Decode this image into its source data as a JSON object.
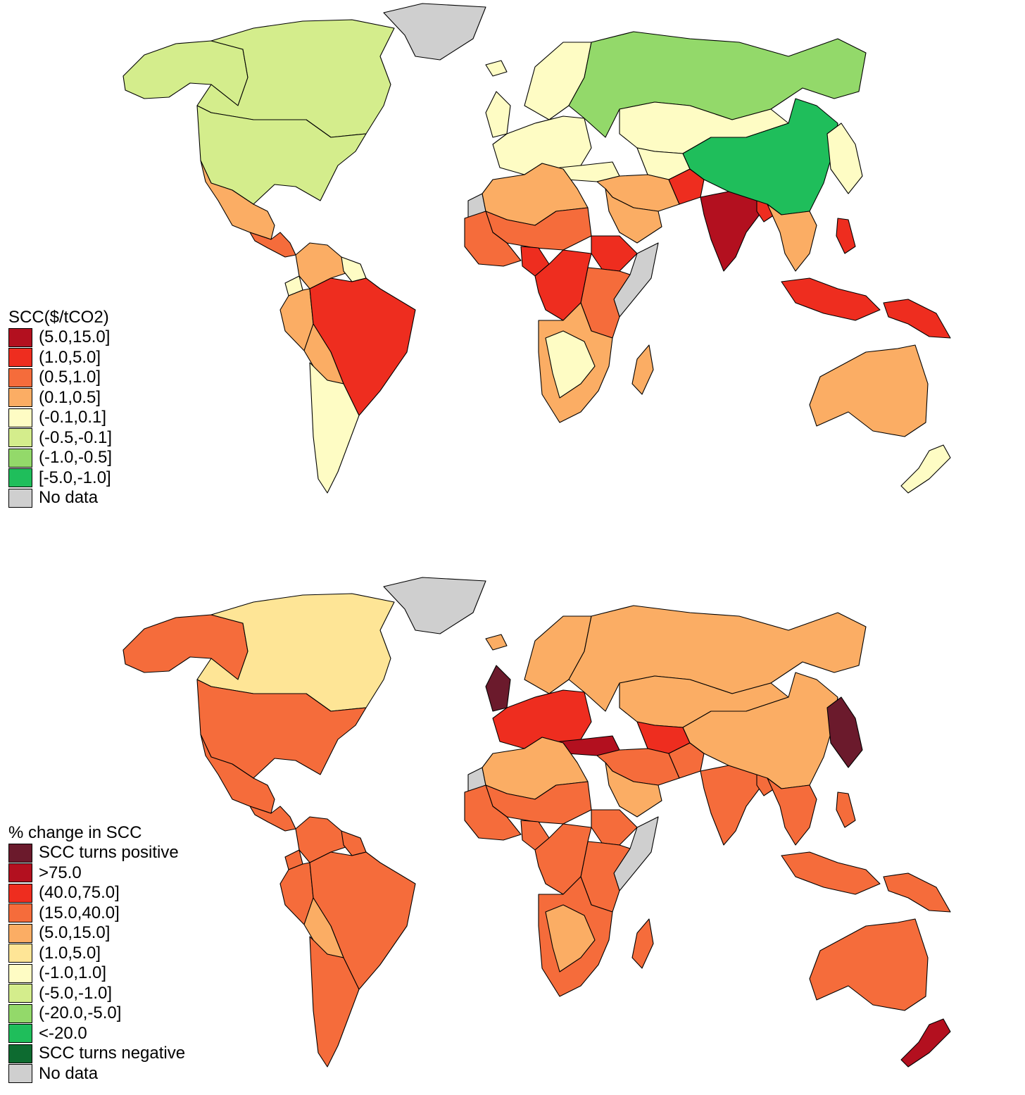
{
  "maps": [
    {
      "id": "scc-level",
      "legend": {
        "title": "SCC($/tCO2)",
        "classes": [
          {
            "label": "(5.0,15.0]",
            "color": "#b3101f"
          },
          {
            "label": "(1.0,5.0]",
            "color": "#ee2d1f"
          },
          {
            "label": "(0.5,1.0]",
            "color": "#f56c3b"
          },
          {
            "label": "(0.1,0.5]",
            "color": "#fbad64"
          },
          {
            "label": "(-0.1,0.1]",
            "color": "#fefcc4"
          },
          {
            "label": "(-0.5,-0.1]",
            "color": "#d4ed8c"
          },
          {
            "label": "(-1.0,-0.5]",
            "color": "#93d96a"
          },
          {
            "label": "[-5.0,-1.0]",
            "color": "#1fbe5b"
          },
          {
            "label": "No data",
            "color": "#cfcfcf"
          }
        ]
      },
      "regions": {
        "canada": "(-0.5,-0.1]",
        "alaska": "(-0.5,-0.1]",
        "usa": "(-0.5,-0.1]",
        "greenland": "No data",
        "mexico": "(0.1,0.5]",
        "central_america": "(0.5,1.0]",
        "colombia_venezuela": "(0.1,0.5]",
        "guianas": "(-0.1,0.1]",
        "peru": "(0.1,0.5]",
        "ecuador": "(-0.1,0.1]",
        "brazil": "(1.0,5.0]",
        "bolivia": "(0.1,0.5]",
        "southern_cone": "(-0.1,0.1]",
        "uk_ireland": "(-0.1,0.1]",
        "scandinavia": "(-0.1,0.1]",
        "iceland": "(-0.1,0.1]",
        "europe": "(-0.1,0.1]",
        "turkey": "(-0.1,0.1]",
        "russia": "(-1.0,-0.5]",
        "kazakhstan_mongolia": "(-0.1,0.1]",
        "central_asia": "(-0.1,0.1]",
        "china": "[-5.0,-1.0]",
        "korea_japan": "(-0.1,0.1]",
        "india": "(5.0,15.0]",
        "south_asia_west": "(1.0,5.0]",
        "bangladesh": "(1.0,5.0]",
        "iran_middle_east": "(0.1,0.5]",
        "arabia": "(0.1,0.5]",
        "southeast_asia": "(0.1,0.5]",
        "indonesia": "(1.0,5.0]",
        "philippines": "(1.0,5.0]",
        "new_guinea": "(1.0,5.0]",
        "australia": "(0.1,0.5]",
        "new_zealand": "(-0.1,0.1]",
        "north_africa": "(0.1,0.5]",
        "sahel": "(0.5,1.0]",
        "west_africa": "(0.5,1.0]",
        "nigeria": "(1.0,5.0]",
        "east_africa": "(0.5,1.0]",
        "ethiopia": "(1.0,5.0]",
        "somalia": "No data",
        "central_africa": "(1.0,5.0]",
        "southern_africa": "(0.1,0.5]",
        "namibia_botswana": "(-0.1,0.1]",
        "madagascar": "(0.1,0.5]",
        "western_sahara": "No data"
      }
    },
    {
      "id": "scc-change",
      "legend": {
        "title": "% change in SCC",
        "classes": [
          {
            "label": "SCC turns positive",
            "color": "#6b1a2c"
          },
          {
            "label": ">75.0",
            "color": "#b3101f"
          },
          {
            "label": "(40.0,75.0]",
            "color": "#ee2d1f"
          },
          {
            "label": "(15.0,40.0]",
            "color": "#f56c3b"
          },
          {
            "label": "(5.0,15.0]",
            "color": "#fbad64"
          },
          {
            "label": "(1.0,5.0]",
            "color": "#fee596"
          },
          {
            "label": "(-1.0,1.0]",
            "color": "#fefcc4"
          },
          {
            "label": "(-5.0,-1.0]",
            "color": "#d4ed8c"
          },
          {
            "label": "(-20.0,-5.0]",
            "color": "#93d96a"
          },
          {
            "label": "<-20.0",
            "color": "#1fbe5b"
          },
          {
            "label": "SCC turns negative",
            "color": "#0d6b30"
          },
          {
            "label": "No data",
            "color": "#cfcfcf"
          }
        ]
      },
      "regions": {
        "canada": "(1.0,5.0]",
        "alaska": "(15.0,40.0]",
        "usa": "(15.0,40.0]",
        "greenland": "No data",
        "mexico": "(15.0,40.0]",
        "central_america": "(15.0,40.0]",
        "colombia_venezuela": "(15.0,40.0]",
        "guianas": "(15.0,40.0]",
        "peru": "(15.0,40.0]",
        "ecuador": "(15.0,40.0]",
        "brazil": "(15.0,40.0]",
        "bolivia": "(5.0,15.0]",
        "southern_cone": "(15.0,40.0]",
        "uk_ireland": "SCC turns positive",
        "scandinavia": "(5.0,15.0]",
        "iceland": "(5.0,15.0]",
        "europe": "(40.0,75.0]",
        "turkey": ">75.0",
        "russia": "(5.0,15.0]",
        "kazakhstan_mongolia": "(5.0,15.0]",
        "central_asia": "(40.0,75.0]",
        "china": "(5.0,15.0]",
        "korea_japan": "SCC turns positive",
        "india": "(15.0,40.0]",
        "south_asia_west": "(15.0,40.0]",
        "bangladesh": "(15.0,40.0]",
        "iran_middle_east": "(15.0,40.0]",
        "arabia": "(5.0,15.0]",
        "southeast_asia": "(15.0,40.0]",
        "indonesia": "(15.0,40.0]",
        "philippines": "(15.0,40.0]",
        "new_guinea": "(15.0,40.0]",
        "australia": "(15.0,40.0]",
        "new_zealand": ">75.0",
        "north_africa": "(5.0,15.0]",
        "sahel": "(15.0,40.0]",
        "west_africa": "(15.0,40.0]",
        "nigeria": "(15.0,40.0]",
        "east_africa": "(15.0,40.0]",
        "ethiopia": "(15.0,40.0]",
        "somalia": "No data",
        "central_africa": "(15.0,40.0]",
        "southern_africa": "(15.0,40.0]",
        "namibia_botswana": "(5.0,15.0]",
        "madagascar": "(15.0,40.0]",
        "western_sahara": "No data"
      }
    }
  ]
}
